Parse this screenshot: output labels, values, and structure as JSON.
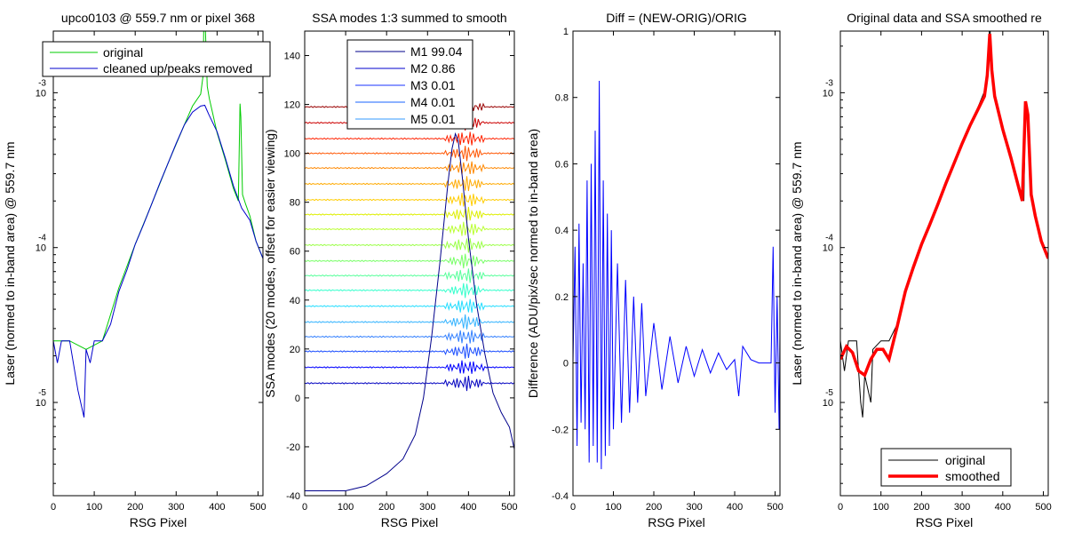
{
  "chart_data": [
    {
      "type": "line",
      "title": "upco0103 @ 559.7 nm or pixel 368",
      "xlabel": "RSG Pixel",
      "ylabel": "Laser (normed to in-band area) @ 559.7 nm",
      "xlim": [
        0,
        512
      ],
      "ylim": [
        2.5e-06,
        0.0025
      ],
      "yscale": "log",
      "x_ticks": [
        0,
        100,
        200,
        300,
        400,
        500
      ],
      "y_ticks": [
        {
          "value": 1e-05,
          "base": "10",
          "exp": "-5"
        },
        {
          "value": 0.0001,
          "base": "10",
          "exp": "-4"
        },
        {
          "value": 0.001,
          "base": "10",
          "exp": "-3"
        }
      ],
      "legend_location": "top",
      "series": [
        {
          "name": "original",
          "color": "#00cc00",
          "x": [
            0,
            40,
            80,
            120,
            160,
            200,
            240,
            280,
            320,
            340,
            360,
            366,
            368,
            371,
            376,
            381,
            400,
            420,
            440,
            452,
            456,
            458,
            462,
            470,
            480,
            495,
            512
          ],
          "y": [
            2.5e-05,
            2.5e-05,
            2.2e-05,
            2.5e-05,
            5.5e-05,
            0.000105,
            0.00019,
            0.00035,
            0.00062,
            0.00082,
            0.00098,
            0.0013,
            0.0035,
            0.0028,
            0.0011,
            0.00092,
            0.00055,
            0.00037,
            0.00024,
            0.0002,
            0.00085,
            0.0007,
            0.00022,
            0.00019,
            0.00016,
            0.00011,
            8.5e-05
          ]
        },
        {
          "name": "cleaned up/peaks removed",
          "color": "#0000cc",
          "x": [
            0,
            10,
            20,
            40,
            60,
            75,
            80,
            90,
            100,
            120,
            140,
            160,
            180,
            200,
            220,
            240,
            260,
            280,
            300,
            320,
            340,
            360,
            370,
            380,
            400,
            420,
            440,
            460,
            480,
            495,
            512
          ],
          "y": [
            2.5e-05,
            1.8e-05,
            2.5e-05,
            2.5e-05,
            1.2e-05,
            8e-06,
            2.2e-05,
            1.8e-05,
            2.5e-05,
            2.5e-05,
            3.2e-05,
            5.2e-05,
            7.2e-05,
            0.000105,
            0.00014,
            0.00019,
            0.00026,
            0.00035,
            0.00047,
            0.00062,
            0.00075,
            0.00082,
            0.00083,
            0.00072,
            0.00056,
            0.00038,
            0.00025,
            0.00018,
            0.00015,
            0.00011,
            8.5e-05
          ]
        }
      ]
    },
    {
      "type": "line",
      "title": "SSA modes 1:3 summed to smooth",
      "xlabel": "RSG Pixel",
      "ylabel": "SSA modes (20 modes, offset for easier viewing)",
      "xlim": [
        0,
        512
      ],
      "ylim": [
        -40,
        150
      ],
      "x_ticks": [
        0,
        100,
        200,
        300,
        400,
        500
      ],
      "y_ticks": [
        -40,
        -20,
        0,
        20,
        40,
        60,
        80,
        100,
        120,
        140
      ],
      "legend_location": "top",
      "legend": [
        "M1 99.04",
        "M2 0.86",
        "M3 0.01",
        "M4 0.01",
        "M5 0.01"
      ],
      "mode_offsets": [
        6,
        12.5,
        19,
        25,
        31,
        37.5,
        44,
        50,
        56,
        62.5,
        69,
        75,
        81,
        87.5,
        94,
        100,
        106,
        112.5,
        119
      ],
      "mode_colors": [
        "#0000c0",
        "#0000ff",
        "#1a4dff",
        "#3380ff",
        "#33b3ff",
        "#22ddff",
        "#33ffcc",
        "#55ff99",
        "#77ff66",
        "#99ff44",
        "#bbff33",
        "#ddee00",
        "#ffcc00",
        "#ffaa00",
        "#ff8800",
        "#ff5500",
        "#ff2200",
        "#cc0000",
        "#990000"
      ],
      "series": [
        {
          "name": "M1 99.04",
          "color": "#00008b",
          "x": [
            0,
            50,
            100,
            150,
            200,
            240,
            270,
            290,
            310,
            330,
            350,
            360,
            368,
            375,
            385,
            400,
            420,
            440,
            460,
            480,
            500,
            512
          ],
          "y": [
            -38,
            -38,
            -38,
            -36,
            -31,
            -25,
            -15,
            0,
            25,
            55,
            88,
            102,
            108,
            105,
            90,
            65,
            38,
            18,
            2,
            -6,
            -12,
            -21
          ]
        }
      ]
    },
    {
      "type": "line",
      "title": "Diff = (NEW-ORIG)/ORIG",
      "xlabel": "RSG Pixel",
      "ylabel": "Difference (ADU/pix/sec normed to in-band area)",
      "xlim": [
        0,
        512
      ],
      "ylim": [
        -0.4,
        1
      ],
      "x_ticks": [
        0,
        100,
        200,
        300,
        400,
        500
      ],
      "y_ticks": [
        -0.4,
        -0.2,
        0,
        0.2,
        0.4,
        0.6,
        0.8,
        1
      ],
      "series": [
        {
          "name": "",
          "color": "#0000ff",
          "x": [
            0,
            5,
            10,
            15,
            20,
            25,
            30,
            35,
            40,
            45,
            50,
            55,
            60,
            65,
            70,
            75,
            80,
            85,
            90,
            95,
            100,
            110,
            120,
            130,
            140,
            150,
            160,
            170,
            180,
            200,
            220,
            240,
            260,
            280,
            300,
            320,
            340,
            360,
            380,
            400,
            410,
            420,
            440,
            460,
            480,
            490,
            495,
            500,
            505,
            510,
            512
          ],
          "y": [
            0,
            0.35,
            -0.25,
            0.42,
            -0.18,
            0.3,
            -0.2,
            0.55,
            -0.3,
            0.6,
            -0.25,
            0.7,
            -0.3,
            0.85,
            -0.32,
            0.55,
            -0.28,
            0.45,
            -0.25,
            0.4,
            -0.2,
            0.3,
            -0.18,
            0.25,
            -0.15,
            0.2,
            -0.12,
            0.18,
            -0.1,
            0.12,
            -0.08,
            0.08,
            -0.06,
            0.05,
            -0.04,
            0.04,
            -0.03,
            0.03,
            -0.02,
            0.01,
            -0.1,
            0.05,
            0.01,
            0,
            0,
            0,
            0.35,
            -0.15,
            0.2,
            -0.2,
            0.1
          ]
        }
      ]
    },
    {
      "type": "line",
      "title": "Original data and SSA smoothed re",
      "xlabel": "RSG Pixel",
      "ylabel": "Laser (normed to in-band area) @ 559.7 nm",
      "xlim": [
        0,
        512
      ],
      "ylim": [
        2.5e-06,
        0.0025
      ],
      "yscale": "log",
      "x_ticks": [
        0,
        100,
        200,
        300,
        400,
        500
      ],
      "y_ticks": [
        {
          "value": 1e-05,
          "base": "10",
          "exp": "-5"
        },
        {
          "value": 0.0001,
          "base": "10",
          "exp": "-4"
        },
        {
          "value": 0.001,
          "base": "10",
          "exp": "-3"
        }
      ],
      "legend_location": "bottom",
      "series": [
        {
          "name": "original",
          "color": "#000000",
          "x": [
            0,
            10,
            20,
            40,
            50,
            55,
            60,
            75,
            80,
            100,
            120,
            140,
            160,
            180,
            200,
            240,
            280,
            320,
            340,
            360,
            368,
            376,
            400,
            420,
            440,
            452,
            456,
            462,
            470,
            480,
            495,
            512
          ],
          "y": [
            2.5e-05,
            1.6e-05,
            2.5e-05,
            2.5e-05,
            1e-05,
            8e-06,
            1.5e-05,
            1e-05,
            2.2e-05,
            2.5e-05,
            2.5e-05,
            3.2e-05,
            5.2e-05,
            7.2e-05,
            0.000105,
            0.00019,
            0.00035,
            0.00062,
            0.00082,
            0.0011,
            0.0028,
            0.0011,
            0.00055,
            0.00037,
            0.00024,
            0.0002,
            0.00085,
            0.0007,
            0.00022,
            0.00016,
            0.00011,
            8.5e-05
          ]
        },
        {
          "name": "smoothed",
          "color": "#ff0000",
          "x": [
            0,
            15,
            30,
            45,
            60,
            75,
            90,
            105,
            120,
            140,
            160,
            180,
            200,
            220,
            240,
            260,
            280,
            300,
            320,
            340,
            355,
            362,
            368,
            373,
            380,
            400,
            420,
            440,
            448,
            456,
            462,
            470,
            480,
            495,
            512
          ],
          "y": [
            1.9e-05,
            2.3e-05,
            2.1e-05,
            1.6e-05,
            1.5e-05,
            1.9e-05,
            2.2e-05,
            2.2e-05,
            1.9e-05,
            3.1e-05,
            5.2e-05,
            7.5e-05,
            0.000105,
            0.00014,
            0.00019,
            0.00026,
            0.00035,
            0.00047,
            0.00062,
            0.00079,
            0.00095,
            0.0013,
            0.0024,
            0.0014,
            0.00095,
            0.00058,
            0.00038,
            0.00024,
            0.0002,
            0.00088,
            0.00072,
            0.00022,
            0.00016,
            0.00011,
            8.5e-05
          ]
        }
      ]
    }
  ]
}
